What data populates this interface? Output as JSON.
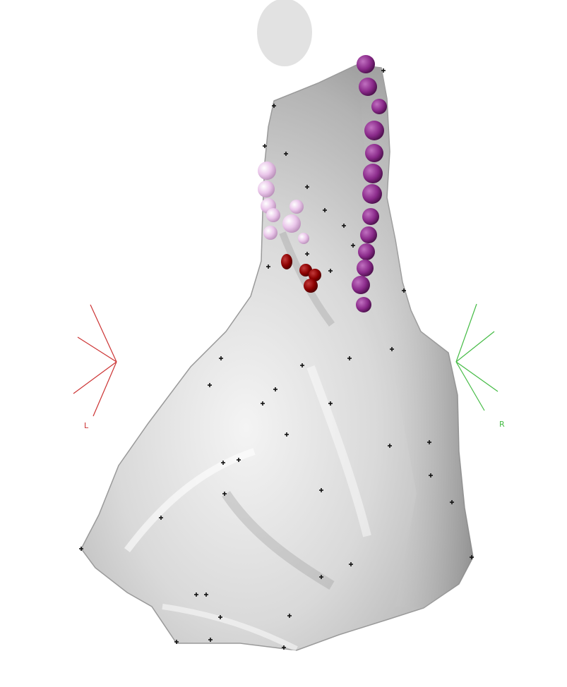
{
  "viewer": {
    "left_label": "L",
    "right_label": "R",
    "colors": {
      "background": "#ffffff",
      "surface_light": "#f2f2f2",
      "surface_mid": "#c8c8c8",
      "surface_dark": "#8f8f8f",
      "head_marker": "#e2e2e2",
      "left_axis": "#cc3333",
      "right_axis": "#44bb44",
      "purple_spheres": "#8a2a8a",
      "pink_spheres": "#e3b8e3",
      "red_spheres": "#8b0000",
      "point_markers": "#111111"
    },
    "icons": {
      "left_triad": "left-orientation-triad-icon",
      "right_triad": "right-orientation-triad-icon",
      "head": "head-marker-icon"
    }
  }
}
